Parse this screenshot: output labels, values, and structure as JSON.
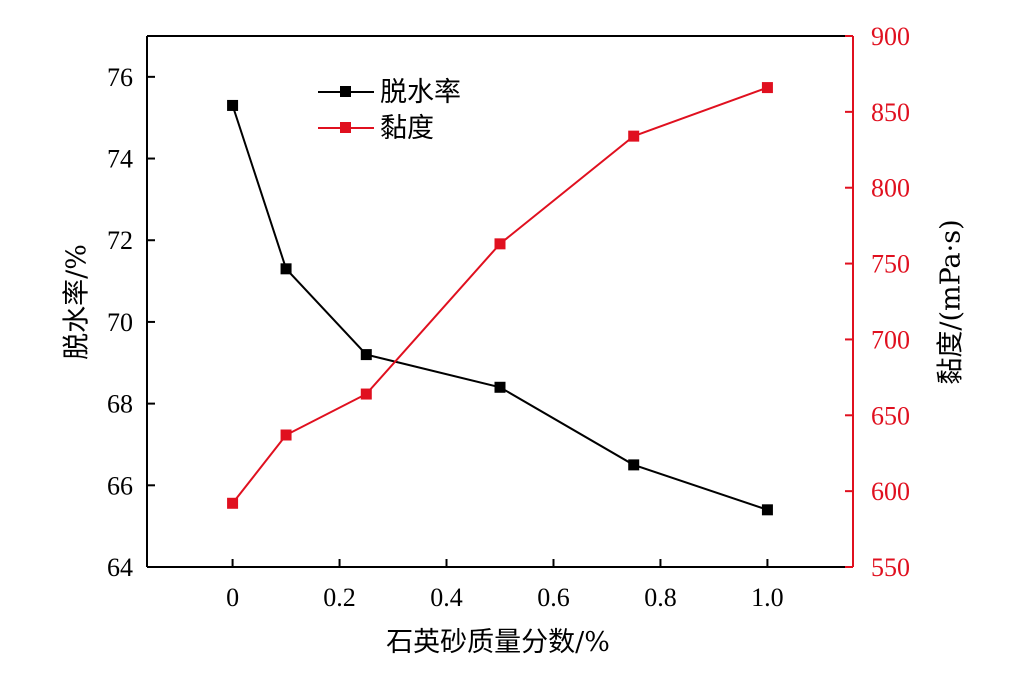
{
  "chart_data": {
    "type": "line",
    "xlabel": "石英砂质量分数/%",
    "ylabel_left": "脱水率/%",
    "ylabel_right": "黏度/(mPa·s)",
    "xlim": [
      -0.16,
      1.16
    ],
    "ylim_left": [
      64,
      77
    ],
    "ylim_right": [
      550,
      900
    ],
    "x_ticks": [
      0,
      0.2,
      0.4,
      0.6,
      0.8,
      1.0
    ],
    "x_tick_labels": [
      "0",
      "0.2",
      "0.4",
      "0.6",
      "0.8",
      "1.0"
    ],
    "y_left_ticks": [
      64,
      66,
      68,
      70,
      72,
      74,
      76
    ],
    "y_left_tick_labels": [
      "64",
      "66",
      "68",
      "70",
      "72",
      "74",
      "76"
    ],
    "y_right_ticks": [
      550,
      600,
      650,
      700,
      750,
      800,
      850,
      900
    ],
    "y_right_tick_labels": [
      "550",
      "600",
      "650",
      "700",
      "750",
      "800",
      "850",
      "900"
    ],
    "legend_position": "top-center",
    "grid": false,
    "x": [
      0,
      0.1,
      0.25,
      0.5,
      0.75,
      1.0
    ],
    "series": [
      {
        "name": "脱水率",
        "axis": "left",
        "color": "#000000",
        "marker": "square",
        "values": [
          75.3,
          71.3,
          69.2,
          68.4,
          66.5,
          65.4
        ]
      },
      {
        "name": "黏度",
        "axis": "right",
        "color": "#e0101f",
        "marker": "square",
        "values": [
          592,
          637,
          664,
          763,
          834,
          866
        ]
      }
    ]
  }
}
